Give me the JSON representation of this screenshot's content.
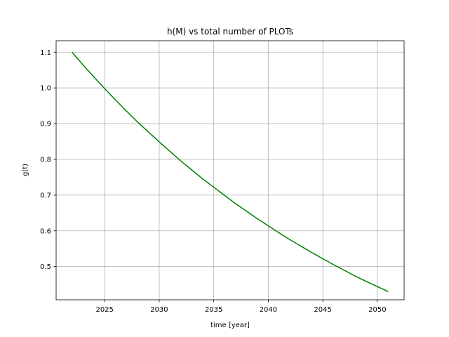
{
  "chart_data": {
    "type": "line",
    "title": "h(M) vs total number of PLOTs",
    "xlabel": "time [year]",
    "ylabel": "g(t)",
    "xlim": [
      2020.55,
      2052.45
    ],
    "ylim": [
      0.407,
      1.132
    ],
    "xticks": [
      2025,
      2030,
      2035,
      2040,
      2045,
      2050
    ],
    "yticks": [
      0.5,
      0.6,
      0.7,
      0.8,
      0.9,
      1.0,
      1.1
    ],
    "xtick_labels": [
      "2025",
      "2030",
      "2035",
      "2040",
      "2045",
      "2050"
    ],
    "ytick_labels": [
      "0.5",
      "0.6",
      "0.7",
      "0.8",
      "0.9",
      "1.0",
      "1.1"
    ],
    "grid": true,
    "series": [
      {
        "color": "#008000",
        "x": [
          2022,
          2023,
          2024,
          2025,
          2026,
          2027,
          2028,
          2029,
          2030,
          2031,
          2032,
          2033,
          2034,
          2035,
          2036,
          2037,
          2038,
          2039,
          2040,
          2041,
          2042,
          2043,
          2044,
          2045,
          2046,
          2047,
          2048,
          2049,
          2050,
          2051
        ],
        "y": [
          1.1,
          1.065,
          1.031,
          0.998,
          0.966,
          0.935,
          0.905,
          0.877,
          0.849,
          0.822,
          0.795,
          0.77,
          0.745,
          0.722,
          0.699,
          0.676,
          0.655,
          0.634,
          0.614,
          0.594,
          0.575,
          0.557,
          0.539,
          0.522,
          0.505,
          0.489,
          0.473,
          0.458,
          0.444,
          0.43
        ]
      }
    ]
  }
}
